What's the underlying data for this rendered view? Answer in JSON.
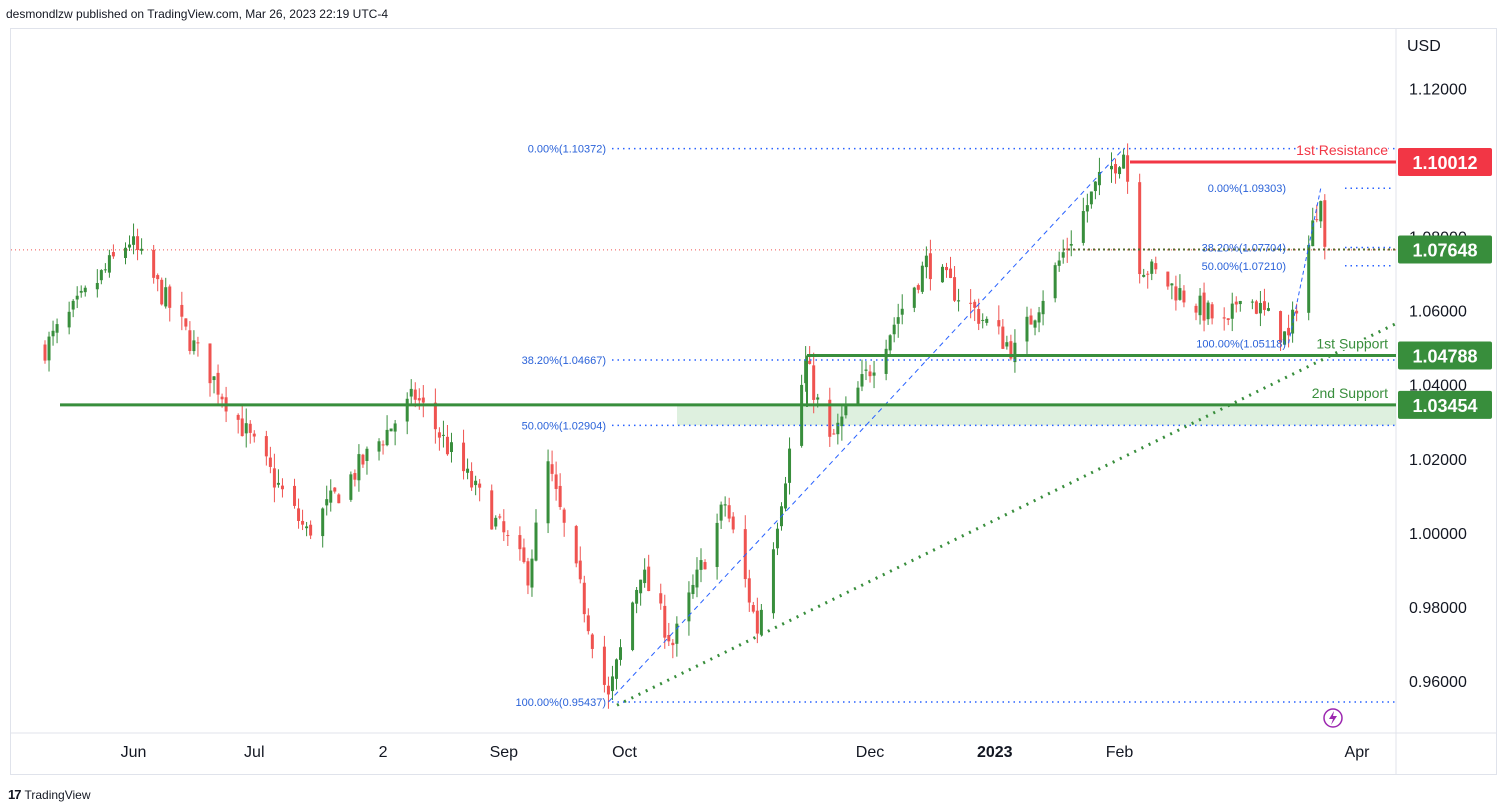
{
  "header": {
    "publisher_line": "desmondlzw published on TradingView.com, Mar 26, 2023 22:19 UTC-4"
  },
  "footer": {
    "brand": "TradingView"
  },
  "colors": {
    "up": "#26a69a",
    "up_candle": "#388e3c",
    "down": "#ef5350",
    "resistance": "#f23645",
    "support": "#388e3c",
    "fib": "#2962ff",
    "fib_text": "#2a62d9",
    "zone": "#c8e6c9"
  },
  "chart_data": {
    "type": "candlestick",
    "symbol_currency": "USD",
    "ylim": [
      0.946,
      1.136
    ],
    "y_ticks": [
      "1.12000",
      "1.10000",
      "1.08000",
      "1.06000",
      "1.04000",
      "1.02000",
      "1.00000",
      "0.98000",
      "0.96000"
    ],
    "y_tick_values": [
      1.12,
      1.1,
      1.08,
      1.06,
      1.04,
      1.02,
      1.0,
      0.98,
      0.96
    ],
    "x_ticks": [
      "Jun",
      "Jul",
      "2",
      "Sep",
      "Oct",
      "Dec",
      "2023",
      "Feb",
      "Apr"
    ],
    "x_tick_dates": [
      "2022-06-01",
      "2022-07-01",
      "2022-08-02",
      "2022-09-01",
      "2022-10-01",
      "2022-12-01",
      "2023-01-01",
      "2023-02-01",
      "2023-04-01"
    ],
    "price_labels": [
      {
        "text": "1.10012",
        "value": 1.10012,
        "color": "#f23645"
      },
      {
        "text": "1.07648",
        "value": 1.07648,
        "color": "#388e3c"
      },
      {
        "text": "1.04788",
        "value": 1.04788,
        "color": "#388e3c"
      },
      {
        "text": "1.03454",
        "value": 1.03454,
        "color": "#388e3c"
      }
    ],
    "level_labels": [
      {
        "text": "1st Resistance",
        "value": 1.10012,
        "color": "#f23645"
      },
      {
        "text": "1st Support",
        "value": 1.04788,
        "color": "#388e3c"
      },
      {
        "text": "2nd Support",
        "value": 1.03454,
        "color": "#388e3c"
      }
    ],
    "fib_labels": [
      {
        "text": "0.00%(1.10372)",
        "value": 1.10372
      },
      {
        "text": "38.20%(1.04667)",
        "value": 1.04667
      },
      {
        "text": "50.00%(1.02904)",
        "value": 1.02904
      },
      {
        "text": "100.00%(0.95437)",
        "value": 0.95437
      },
      {
        "text": "0.00%(1.09303)",
        "value": 1.09303
      },
      {
        "text": "38.20%(1.07704)",
        "value": 1.07704
      },
      {
        "text": "50.00%(1.07210)",
        "value": 1.0721
      },
      {
        "text": "100.00%(1.05118)",
        "value": 1.05118
      }
    ],
    "anchor_points": [
      {
        "date": "2022-05-10",
        "value": 1.05
      },
      {
        "date": "2022-05-31",
        "value": 1.079
      },
      {
        "date": "2022-07-14",
        "value": 1.0
      },
      {
        "date": "2022-08-10",
        "value": 1.037
      },
      {
        "date": "2022-09-07",
        "value": 0.989
      },
      {
        "date": "2022-09-12",
        "value": 1.018
      },
      {
        "date": "2022-09-27",
        "value": 0.955
      },
      {
        "date": "2022-10-05",
        "value": 0.99
      },
      {
        "date": "2022-10-13",
        "value": 0.97
      },
      {
        "date": "2022-10-26",
        "value": 1.008
      },
      {
        "date": "2022-11-03",
        "value": 0.974
      },
      {
        "date": "2022-11-15",
        "value": 1.046
      },
      {
        "date": "2022-11-21",
        "value": 1.024
      },
      {
        "date": "2022-12-15",
        "value": 1.073
      },
      {
        "date": "2023-01-06",
        "value": 1.049
      },
      {
        "date": "2023-01-26",
        "value": 1.093
      },
      {
        "date": "2023-02-02",
        "value": 1.103
      },
      {
        "date": "2023-02-06",
        "value": 1.073
      },
      {
        "date": "2023-02-28",
        "value": 1.055
      },
      {
        "date": "2023-03-03",
        "value": 1.066
      },
      {
        "date": "2023-03-15",
        "value": 1.052
      },
      {
        "date": "2023-03-23",
        "value": 1.093
      },
      {
        "date": "2023-03-24",
        "value": 1.076
      }
    ]
  }
}
